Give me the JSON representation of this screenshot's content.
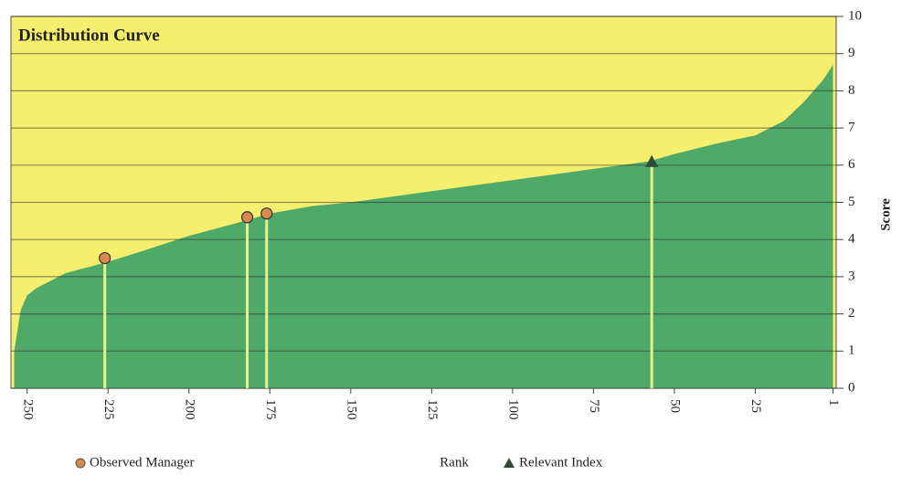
{
  "chart_data": {
    "type": "area",
    "title": "Distribution Curve",
    "x_label": "Rank",
    "y_label": "Score",
    "color": "#4fa968",
    "background": "#f6ef6e",
    "x": [
      254,
      252,
      250,
      247,
      238,
      225,
      214,
      200,
      187,
      175,
      162,
      150,
      125,
      100,
      75,
      58,
      50,
      36,
      25,
      16,
      10,
      4,
      1
    ],
    "values": [
      1.0,
      2.1,
      2.5,
      2.7,
      3.1,
      3.4,
      3.7,
      4.1,
      4.4,
      4.7,
      4.9,
      5.0,
      5.3,
      5.6,
      5.9,
      6.1,
      6.3,
      6.6,
      6.8,
      7.2,
      7.7,
      8.3,
      8.7
    ],
    "series": [
      {
        "name": "Observed Manager",
        "marker": "circle",
        "color": "#d9894e",
        "x": [
          226,
          182,
          176
        ],
        "values": [
          3.5,
          4.6,
          4.7
        ]
      },
      {
        "name": "Relevant Index",
        "marker": "triangle",
        "color": "#2f4a36",
        "x": [
          57
        ],
        "values": [
          6.1
        ]
      }
    ],
    "xlim": [
      255,
      0
    ],
    "xticks": [
      250,
      225,
      200,
      175,
      150,
      125,
      100,
      75,
      50,
      25,
      1
    ],
    "ylim": [
      0,
      10
    ],
    "yticks": [
      0,
      1,
      2,
      3,
      4,
      5,
      6,
      7,
      8,
      9,
      10
    ],
    "grid": true
  }
}
